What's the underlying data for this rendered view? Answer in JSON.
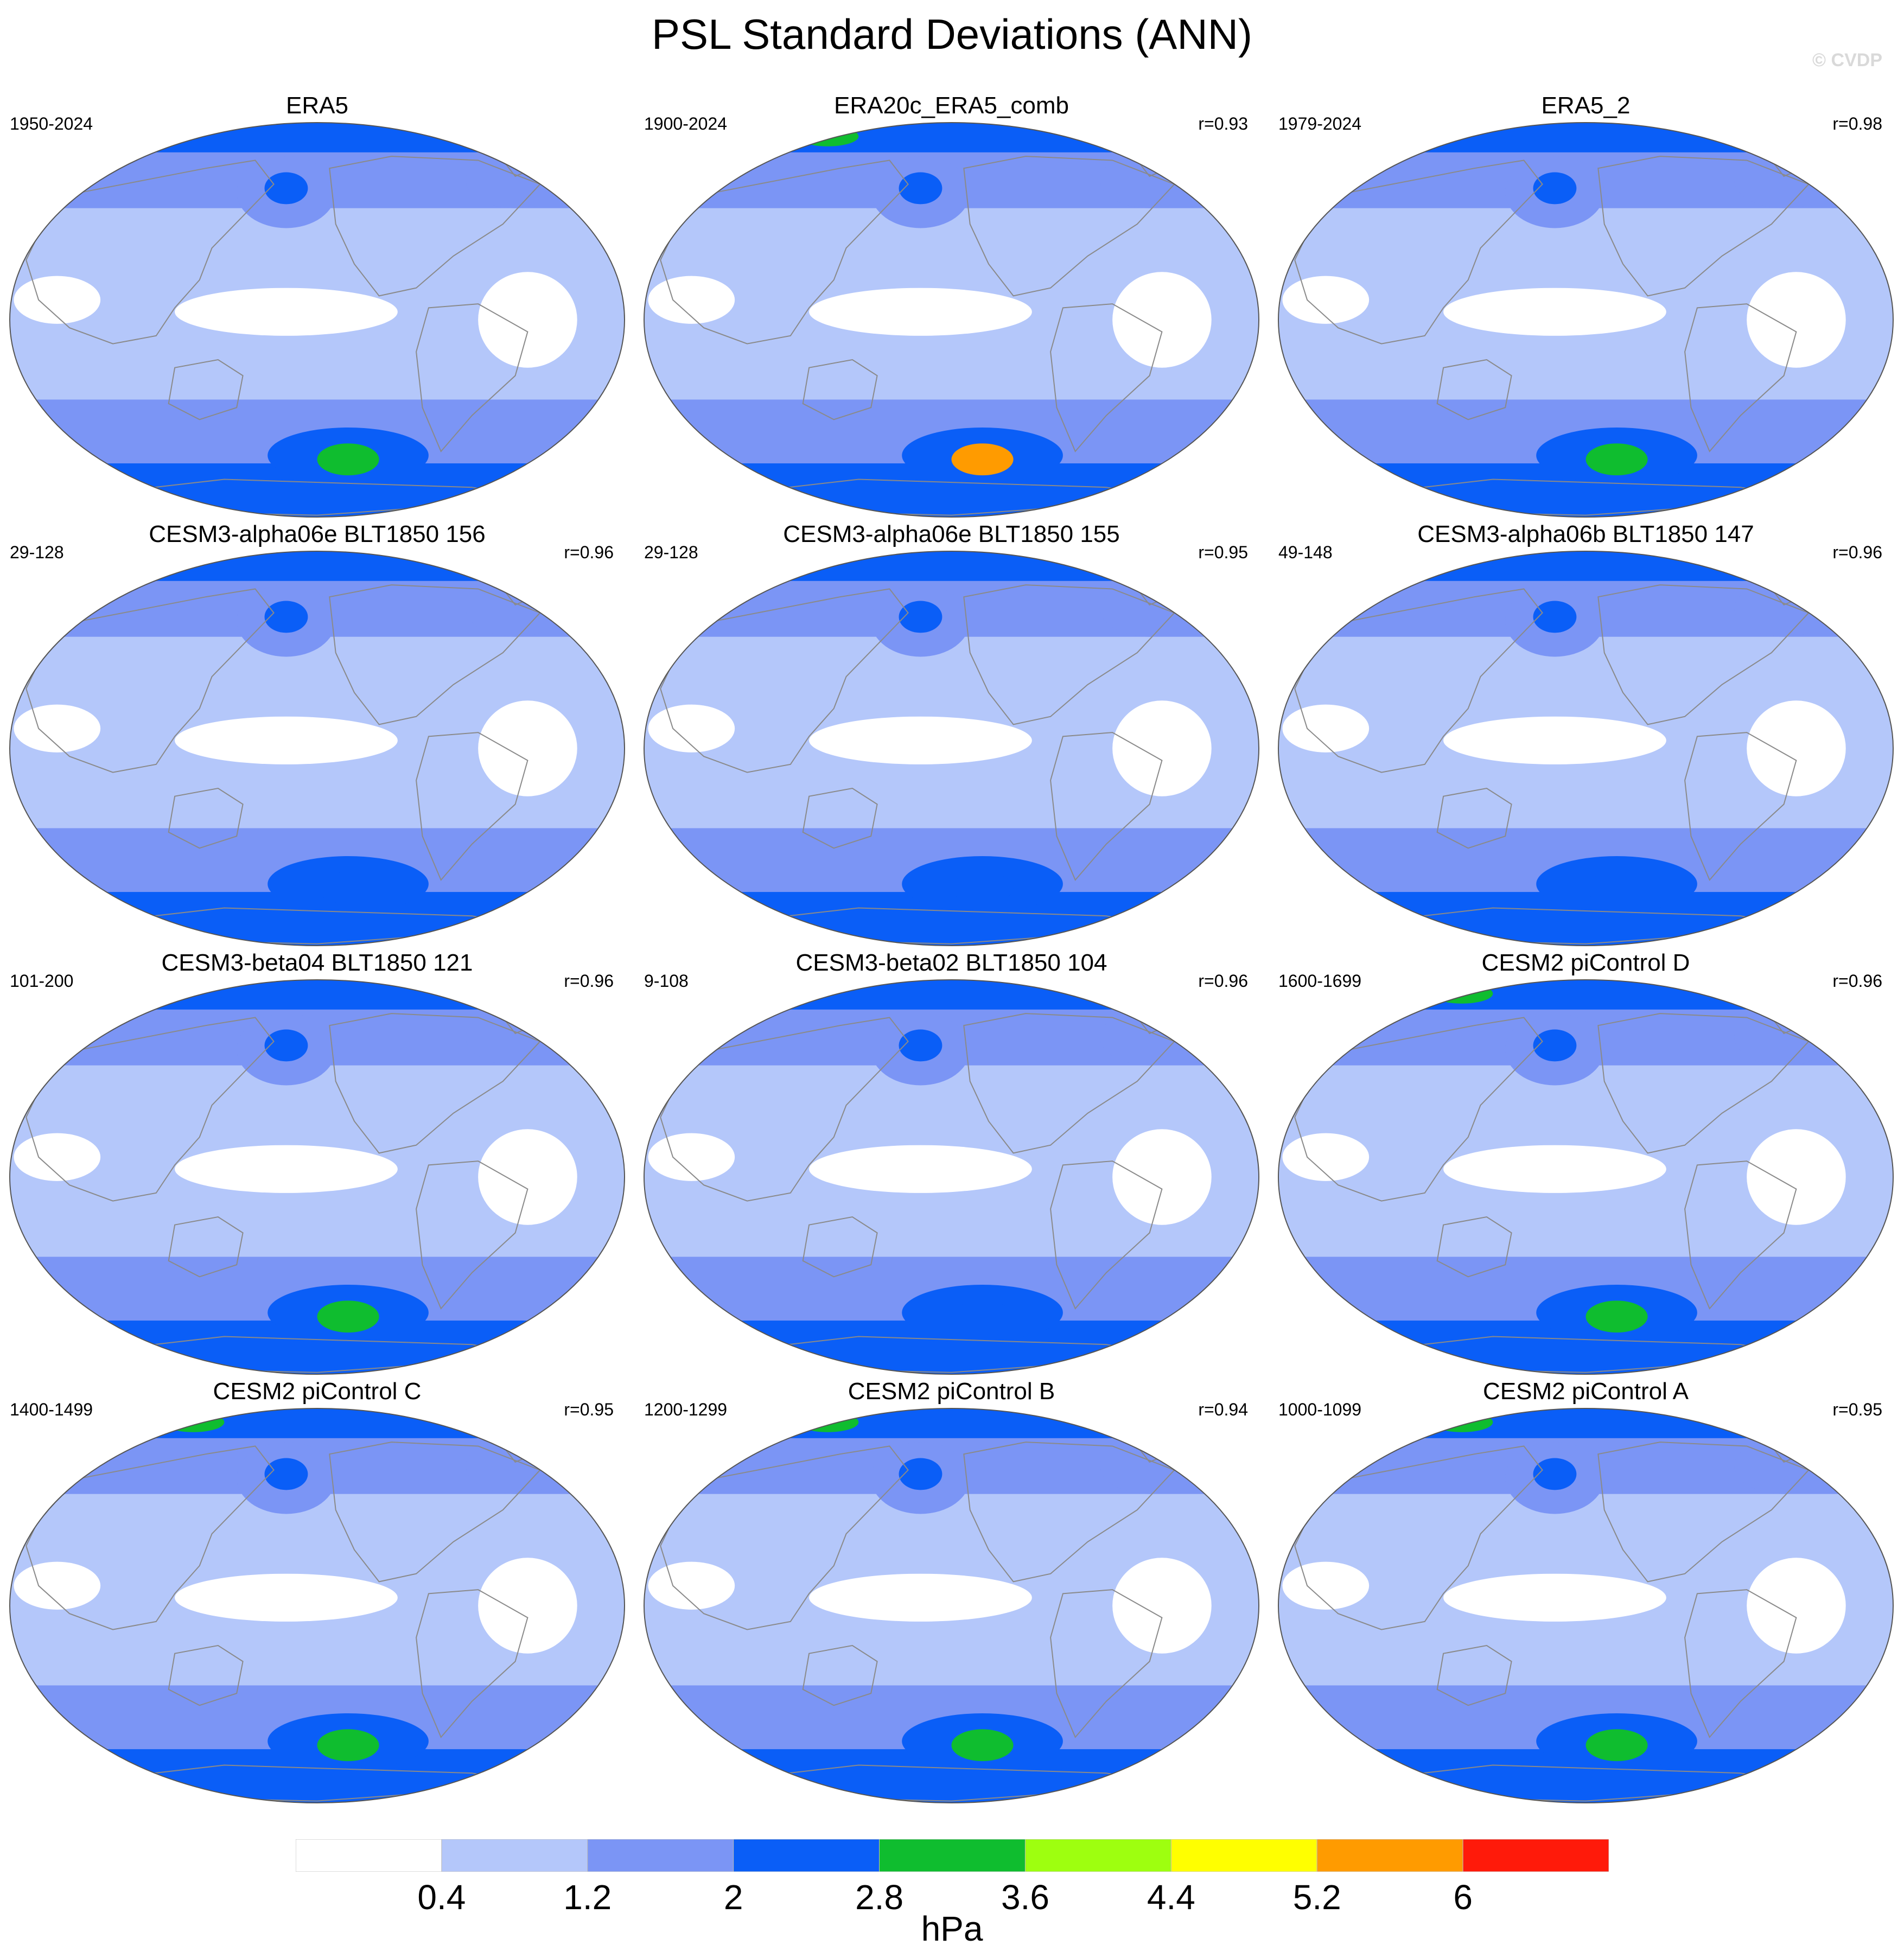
{
  "title": "PSL Standard Deviations (ANN)",
  "credit": "© CVDP",
  "units": "hPa",
  "colorbar": {
    "labels": [
      "0.4",
      "1.2",
      "2",
      "2.8",
      "3.6",
      "4.4",
      "5.2",
      "6"
    ],
    "colors": [
      "#ffffff",
      "#b4c7fa",
      "#7b95f5",
      "#0a5ef7",
      "#0fbd2f",
      "#9eff0f",
      "#ffff00",
      "#ff9b00",
      "#ff1a0a"
    ]
  },
  "panels": [
    {
      "title": "ERA5",
      "years": "1950-2024",
      "r": "",
      "southern_max_color": "#0fbd2f",
      "northern_max_color": "#0a5ef7"
    },
    {
      "title": "ERA20c_ERA5_comb",
      "years": "1900-2024",
      "r": "r=0.93",
      "southern_max_color": "#ff9b00",
      "northern_max_color": "#0fbd2f"
    },
    {
      "title": "ERA5_2",
      "years": "1979-2024",
      "r": "r=0.98",
      "southern_max_color": "#0fbd2f",
      "northern_max_color": "#0a5ef7"
    },
    {
      "title": "CESM3-alpha06e BLT1850 156",
      "years": "29-128",
      "r": "r=0.96",
      "southern_max_color": "#0a5ef7",
      "northern_max_color": "#0a5ef7"
    },
    {
      "title": "CESM3-alpha06e BLT1850 155",
      "years": "29-128",
      "r": "r=0.95",
      "southern_max_color": "#0a5ef7",
      "northern_max_color": "#0a5ef7"
    },
    {
      "title": "CESM3-alpha06b BLT1850 147",
      "years": "49-148",
      "r": "r=0.96",
      "southern_max_color": "#0a5ef7",
      "northern_max_color": "#0a5ef7"
    },
    {
      "title": "CESM3-beta04 BLT1850 121",
      "years": "101-200",
      "r": "r=0.96",
      "southern_max_color": "#0fbd2f",
      "northern_max_color": "#0a5ef7"
    },
    {
      "title": "CESM3-beta02 BLT1850 104",
      "years": "9-108",
      "r": "r=0.96",
      "southern_max_color": "#0a5ef7",
      "northern_max_color": "#0a5ef7"
    },
    {
      "title": "CESM2 piControl D",
      "years": "1600-1699",
      "r": "r=0.96",
      "southern_max_color": "#0fbd2f",
      "northern_max_color": "#0fbd2f"
    },
    {
      "title": "CESM2 piControl C",
      "years": "1400-1499",
      "r": "r=0.95",
      "southern_max_color": "#0fbd2f",
      "northern_max_color": "#0fbd2f"
    },
    {
      "title": "CESM2 piControl B",
      "years": "1200-1299",
      "r": "r=0.94",
      "southern_max_color": "#0fbd2f",
      "northern_max_color": "#0fbd2f"
    },
    {
      "title": "CESM2 piControl A",
      "years": "1000-1099",
      "r": "r=0.95",
      "southern_max_color": "#0fbd2f",
      "northern_max_color": "#0fbd2f"
    }
  ]
}
